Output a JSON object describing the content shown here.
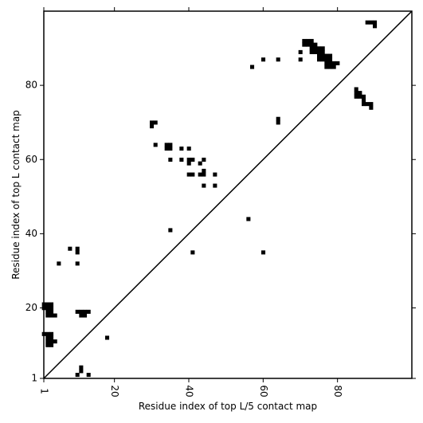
{
  "chart_data": {
    "type": "heatmap",
    "title": "",
    "xlabel": "Residue index of top L/5 contact map",
    "ylabel": "Residue index of top L contact map",
    "xlim": [
      1,
      100
    ],
    "ylim": [
      1,
      100
    ],
    "x_ticks": [
      1,
      20,
      40,
      60,
      80
    ],
    "y_ticks": [
      1,
      20,
      40,
      60,
      80
    ],
    "diagonal_line": true,
    "cell_color": "#000000",
    "cells": [
      [
        1,
        20
      ],
      [
        2,
        20
      ],
      [
        3,
        20
      ],
      [
        1,
        21
      ],
      [
        2,
        21
      ],
      [
        3,
        21
      ],
      [
        2,
        19
      ],
      [
        3,
        19
      ],
      [
        2,
        18
      ],
      [
        3,
        18
      ],
      [
        4,
        18
      ],
      [
        1,
        13
      ],
      [
        2,
        13
      ],
      [
        3,
        13
      ],
      [
        2,
        12
      ],
      [
        3,
        12
      ],
      [
        2,
        11
      ],
      [
        3,
        11
      ],
      [
        4,
        11
      ],
      [
        2,
        10
      ],
      [
        3,
        10
      ],
      [
        10,
        19
      ],
      [
        11,
        19
      ],
      [
        12,
        19
      ],
      [
        13,
        19
      ],
      [
        11,
        18
      ],
      [
        12,
        18
      ],
      [
        18,
        12
      ],
      [
        10,
        2
      ],
      [
        11,
        3
      ],
      [
        11,
        4
      ],
      [
        13,
        2
      ],
      [
        5,
        32
      ],
      [
        10,
        32
      ],
      [
        8,
        36
      ],
      [
        10,
        36
      ],
      [
        10,
        35
      ],
      [
        35,
        41
      ],
      [
        41,
        35
      ],
      [
        56,
        44
      ],
      [
        60,
        35
      ],
      [
        30,
        70
      ],
      [
        31,
        70
      ],
      [
        30,
        69
      ],
      [
        31,
        64
      ],
      [
        34,
        64
      ],
      [
        35,
        64
      ],
      [
        34,
        63
      ],
      [
        35,
        63
      ],
      [
        35,
        60
      ],
      [
        38,
        60
      ],
      [
        38,
        63
      ],
      [
        40,
        63
      ],
      [
        40,
        60
      ],
      [
        41,
        60
      ],
      [
        40,
        59
      ],
      [
        40,
        56
      ],
      [
        41,
        56
      ],
      [
        43,
        59
      ],
      [
        44,
        60
      ],
      [
        43,
        56
      ],
      [
        44,
        56
      ],
      [
        44,
        57
      ],
      [
        47,
        56
      ],
      [
        44,
        53
      ],
      [
        47,
        53
      ],
      [
        57,
        85
      ],
      [
        60,
        87
      ],
      [
        64,
        87
      ],
      [
        64,
        71
      ],
      [
        64,
        70
      ],
      [
        70,
        89
      ],
      [
        70,
        87
      ],
      [
        71,
        92
      ],
      [
        72,
        92
      ],
      [
        73,
        92
      ],
      [
        71,
        91
      ],
      [
        72,
        91
      ],
      [
        73,
        91
      ],
      [
        74,
        91
      ],
      [
        73,
        90
      ],
      [
        74,
        90
      ],
      [
        75,
        90
      ],
      [
        76,
        90
      ],
      [
        73,
        89
      ],
      [
        74,
        89
      ],
      [
        75,
        89
      ],
      [
        76,
        89
      ],
      [
        75,
        88
      ],
      [
        76,
        88
      ],
      [
        77,
        88
      ],
      [
        78,
        88
      ],
      [
        75,
        87
      ],
      [
        76,
        87
      ],
      [
        77,
        87
      ],
      [
        78,
        87
      ],
      [
        77,
        86
      ],
      [
        78,
        86
      ],
      [
        79,
        86
      ],
      [
        80,
        86
      ],
      [
        77,
        85
      ],
      [
        78,
        85
      ],
      [
        79,
        85
      ],
      [
        85,
        79
      ],
      [
        85,
        78
      ],
      [
        86,
        78
      ],
      [
        85,
        77
      ],
      [
        86,
        77
      ],
      [
        87,
        77
      ],
      [
        87,
        76
      ],
      [
        87,
        75
      ],
      [
        88,
        75
      ],
      [
        89,
        75
      ],
      [
        89,
        74
      ],
      [
        88,
        97
      ],
      [
        89,
        97
      ],
      [
        90,
        97
      ],
      [
        90,
        96
      ]
    ]
  }
}
